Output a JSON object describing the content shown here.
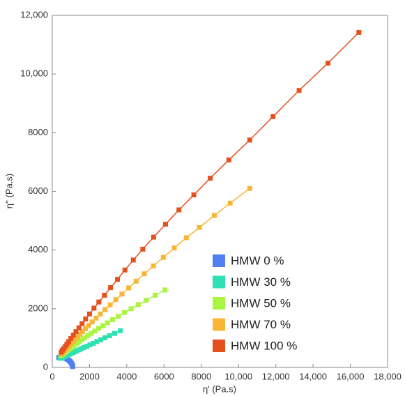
{
  "chart_data": {
    "type": "line",
    "x_label": "η' (Pa.s)",
    "y_label": "η'' (Pa.s)",
    "xlim": [
      0,
      18000
    ],
    "ylim": [
      0,
      12000
    ],
    "xticks": [
      0,
      2000,
      4000,
      6000,
      8000,
      {
        "value": 10000,
        "label": "10,000"
      },
      {
        "value": 12000,
        "label": "12,000"
      },
      {
        "value": 14000,
        "label": "14,000"
      },
      {
        "value": 16000,
        "label": "16,000"
      },
      {
        "value": 18000,
        "label": "18,000"
      }
    ],
    "yticks": [
      0,
      2000,
      4000,
      6000,
      8000,
      {
        "value": 10000,
        "label": "10,000"
      },
      {
        "value": 12000,
        "label": "12,000"
      }
    ],
    "markers": true,
    "series": [
      {
        "name": "HMW 0 %",
        "color": "#4f80f2",
        "x": [
          350,
          410,
          480,
          560,
          650,
          740,
          820,
          900,
          960,
          1010,
          1050,
          1080,
          1100
        ],
        "values": [
          340,
          350,
          350,
          340,
          320,
          300,
          270,
          240,
          200,
          160,
          120,
          80,
          30
        ]
      },
      {
        "name": "HMW 30 %",
        "color": "#2fe0b2",
        "x": [
          420,
          460,
          500,
          540,
          590,
          640,
          690,
          750,
          810,
          880,
          960,
          1040,
          1130,
          1230,
          1330,
          1450,
          1570,
          1710,
          1860,
          2020,
          2200,
          2390,
          2600,
          2830,
          3080,
          3350,
          3650
        ],
        "values": [
          310,
          320,
          330,
          340,
          350,
          370,
          380,
          400,
          420,
          440,
          460,
          490,
          510,
          540,
          570,
          600,
          640,
          680,
          720,
          770,
          820,
          880,
          940,
          1010,
          1080,
          1160,
          1250
        ]
      },
      {
        "name": "HMW 50 %",
        "color": "#a9f542",
        "x": [
          480,
          520,
          570,
          620,
          680,
          740,
          810,
          880,
          960,
          1040,
          1140,
          1240,
          1350,
          1470,
          1600,
          1750,
          1910,
          2090,
          2280,
          2490,
          2720,
          2970,
          3240,
          3540,
          3870,
          4230,
          4620,
          5050,
          5520,
          6050
        ],
        "values": [
          400,
          430,
          450,
          480,
          510,
          540,
          570,
          610,
          640,
          690,
          730,
          780,
          830,
          890,
          950,
          1010,
          1080,
          1160,
          1240,
          1330,
          1420,
          1520,
          1630,
          1740,
          1870,
          2000,
          2140,
          2290,
          2460,
          2640
        ]
      },
      {
        "name": "HMW 70 %",
        "color": "#f9b536",
        "x": [
          480,
          530,
          580,
          640,
          700,
          770,
          850,
          930,
          1020,
          1120,
          1230,
          1350,
          1480,
          1620,
          1780,
          1950,
          2140,
          2350,
          2580,
          2830,
          3110,
          3410,
          3740,
          4100,
          4500,
          4940,
          5430,
          5960,
          6550,
          7200,
          7900,
          8700,
          9550,
          10600
        ],
        "values": [
          450,
          480,
          520,
          560,
          600,
          650,
          700,
          760,
          820,
          890,
          960,
          1040,
          1130,
          1220,
          1320,
          1430,
          1550,
          1680,
          1820,
          1970,
          2130,
          2310,
          2500,
          2710,
          2940,
          3190,
          3460,
          3750,
          4070,
          4420,
          4770,
          5180,
          5600,
          6100
        ]
      },
      {
        "name": "HMW 100 %",
        "color": "#e5501f",
        "x": [
          480,
          540,
          610,
          690,
          780,
          880,
          1000,
          1130,
          1270,
          1430,
          1600,
          1790,
          2000,
          2240,
          2500,
          2800,
          3130,
          3500,
          3900,
          4350,
          4860,
          5440,
          6080,
          6800,
          7600,
          8480,
          9480,
          10600,
          11850,
          13250,
          14800,
          16460
        ],
        "values": [
          520,
          580,
          640,
          710,
          790,
          880,
          990,
          1100,
          1220,
          1350,
          1490,
          1650,
          1820,
          2020,
          2230,
          2460,
          2720,
          3000,
          3320,
          3660,
          4030,
          4440,
          4880,
          5370,
          5880,
          6450,
          7070,
          7750,
          8550,
          9440,
          10370,
          11420
        ]
      }
    ]
  }
}
